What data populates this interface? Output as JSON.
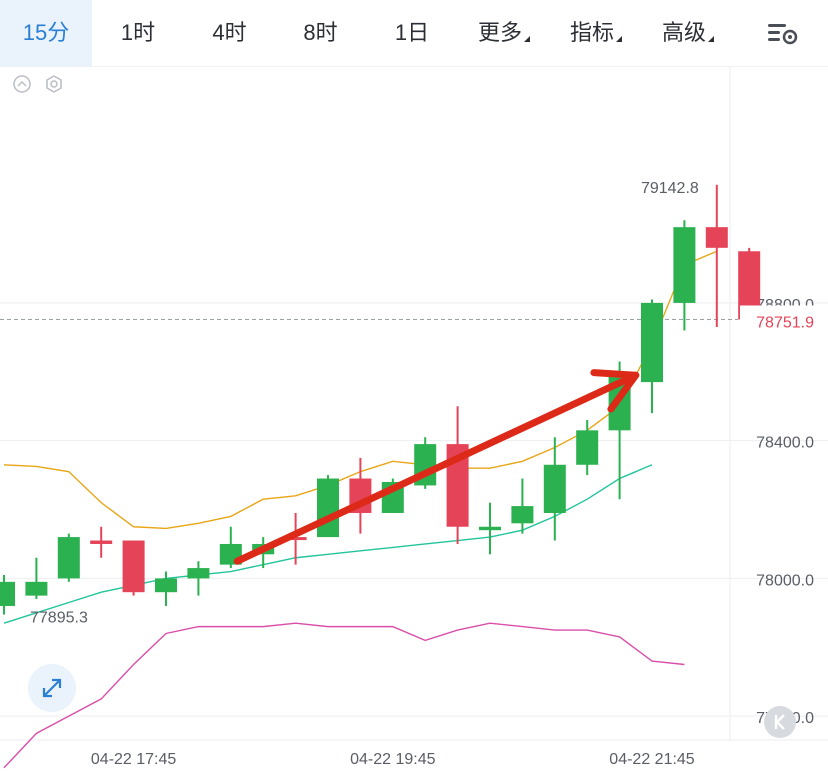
{
  "tabs": [
    {
      "label": "15分",
      "active": true,
      "dropdown": false
    },
    {
      "label": "1时",
      "active": false,
      "dropdown": false
    },
    {
      "label": "4时",
      "active": false,
      "dropdown": false
    },
    {
      "label": "8时",
      "active": false,
      "dropdown": false
    },
    {
      "label": "1日",
      "active": false,
      "dropdown": false
    },
    {
      "label": "更多",
      "active": false,
      "dropdown": true
    },
    {
      "label": "指标",
      "active": false,
      "dropdown": true
    },
    {
      "label": "高级",
      "active": false,
      "dropdown": true
    }
  ],
  "icons": {
    "settings": "chart-settings-icon",
    "collapse": "collapse-circle-icon",
    "indicator_settings": "hexagon-settings-icon",
    "expand": "expand-arrows-icon",
    "k_button": "k-line-icon"
  },
  "colors": {
    "up": "#2bb14f",
    "down": "#e54358",
    "ma": "#e8a617",
    "boll_mid": "#23c49c",
    "boll_lower": "#d94fa9",
    "arrow": "#dd2a18",
    "accent": "#2a7fd4"
  },
  "chart_data": {
    "type": "candlestick",
    "y_ticks": [
      "78800.0",
      "78400.0",
      "78000.0",
      "77600.0"
    ],
    "y_tick_values": [
      78800,
      78400,
      78000,
      77600
    ],
    "ylim": [
      77432,
      79488
    ],
    "x_ticks": [
      "04-22 17:45",
      "04-22 19:45",
      "04-22 21:45"
    ],
    "x_tick_candle_index": [
      4,
      12,
      20
    ],
    "current_price": "78751.9",
    "high_label": "79142.8",
    "low_label": "77895.3",
    "candles": [
      {
        "o": 77920,
        "h": 78010,
        "l": 77895,
        "c": 77990,
        "up": true
      },
      {
        "o": 77950,
        "h": 78060,
        "l": 77940,
        "c": 77990,
        "up": true
      },
      {
        "o": 78000,
        "h": 78130,
        "l": 77990,
        "c": 78120,
        "up": true
      },
      {
        "o": 78110,
        "h": 78150,
        "l": 78060,
        "c": 78100,
        "up": false
      },
      {
        "o": 78110,
        "h": 78110,
        "l": 77950,
        "c": 77960,
        "up": false
      },
      {
        "o": 77960,
        "h": 78020,
        "l": 77920,
        "c": 78000,
        "up": true
      },
      {
        "o": 78000,
        "h": 78050,
        "l": 77950,
        "c": 78030,
        "up": true
      },
      {
        "o": 78040,
        "h": 78150,
        "l": 78030,
        "c": 78100,
        "up": true
      },
      {
        "o": 78070,
        "h": 78120,
        "l": 78030,
        "c": 78100,
        "up": true
      },
      {
        "o": 78120,
        "h": 78190,
        "l": 78040,
        "c": 78120,
        "up": false
      },
      {
        "o": 78120,
        "h": 78300,
        "l": 78120,
        "c": 78290,
        "up": true
      },
      {
        "o": 78290,
        "h": 78350,
        "l": 78130,
        "c": 78190,
        "up": false
      },
      {
        "o": 78190,
        "h": 78290,
        "l": 78190,
        "c": 78280,
        "up": true
      },
      {
        "o": 78270,
        "h": 78410,
        "l": 78260,
        "c": 78390,
        "up": true
      },
      {
        "o": 78390,
        "h": 78500,
        "l": 78100,
        "c": 78150,
        "up": false
      },
      {
        "o": 78140,
        "h": 78220,
        "l": 78070,
        "c": 78150,
        "up": true
      },
      {
        "o": 78160,
        "h": 78290,
        "l": 78130,
        "c": 78210,
        "up": true
      },
      {
        "o": 78190,
        "h": 78410,
        "l": 78110,
        "c": 78330,
        "up": true
      },
      {
        "o": 78330,
        "h": 78460,
        "l": 78300,
        "c": 78430,
        "up": true
      },
      {
        "o": 78430,
        "h": 78630,
        "l": 78230,
        "c": 78590,
        "up": true
      },
      {
        "o": 78570,
        "h": 78810,
        "l": 78480,
        "c": 78800,
        "up": true
      },
      {
        "o": 78800,
        "h": 79040,
        "l": 78720,
        "c": 79020,
        "up": true
      },
      {
        "o": 79020,
        "h": 79143,
        "l": 78730,
        "c": 78960,
        "up": false
      },
      {
        "o": 78950,
        "h": 78960,
        "l": 78750,
        "c": 78752,
        "up": false
      }
    ],
    "ma": [
      78330,
      78325,
      78310,
      78220,
      78150,
      78145,
      78160,
      78180,
      78230,
      78240,
      78270,
      78310,
      78340,
      78330,
      78320,
      78320,
      78340,
      78380,
      78430,
      78500,
      78680,
      78910,
      78950
    ],
    "boll_mid": [
      77870,
      77900,
      77930,
      77960,
      77980,
      78000,
      78010,
      78020,
      78040,
      78060,
      78070,
      78080,
      78090,
      78100,
      78110,
      78120,
      78140,
      78180,
      78230,
      78290,
      78330
    ],
    "boll_lower": [
      77450,
      77550,
      77600,
      77650,
      77750,
      77840,
      77860,
      77860,
      77860,
      77870,
      77860,
      77860,
      77860,
      77820,
      77850,
      77870,
      77860,
      77850,
      77850,
      77830,
      77760,
      77750
    ],
    "arrow": {
      "from": [
        7.2,
        78050
      ],
      "to": [
        19.5,
        78590
      ]
    }
  }
}
